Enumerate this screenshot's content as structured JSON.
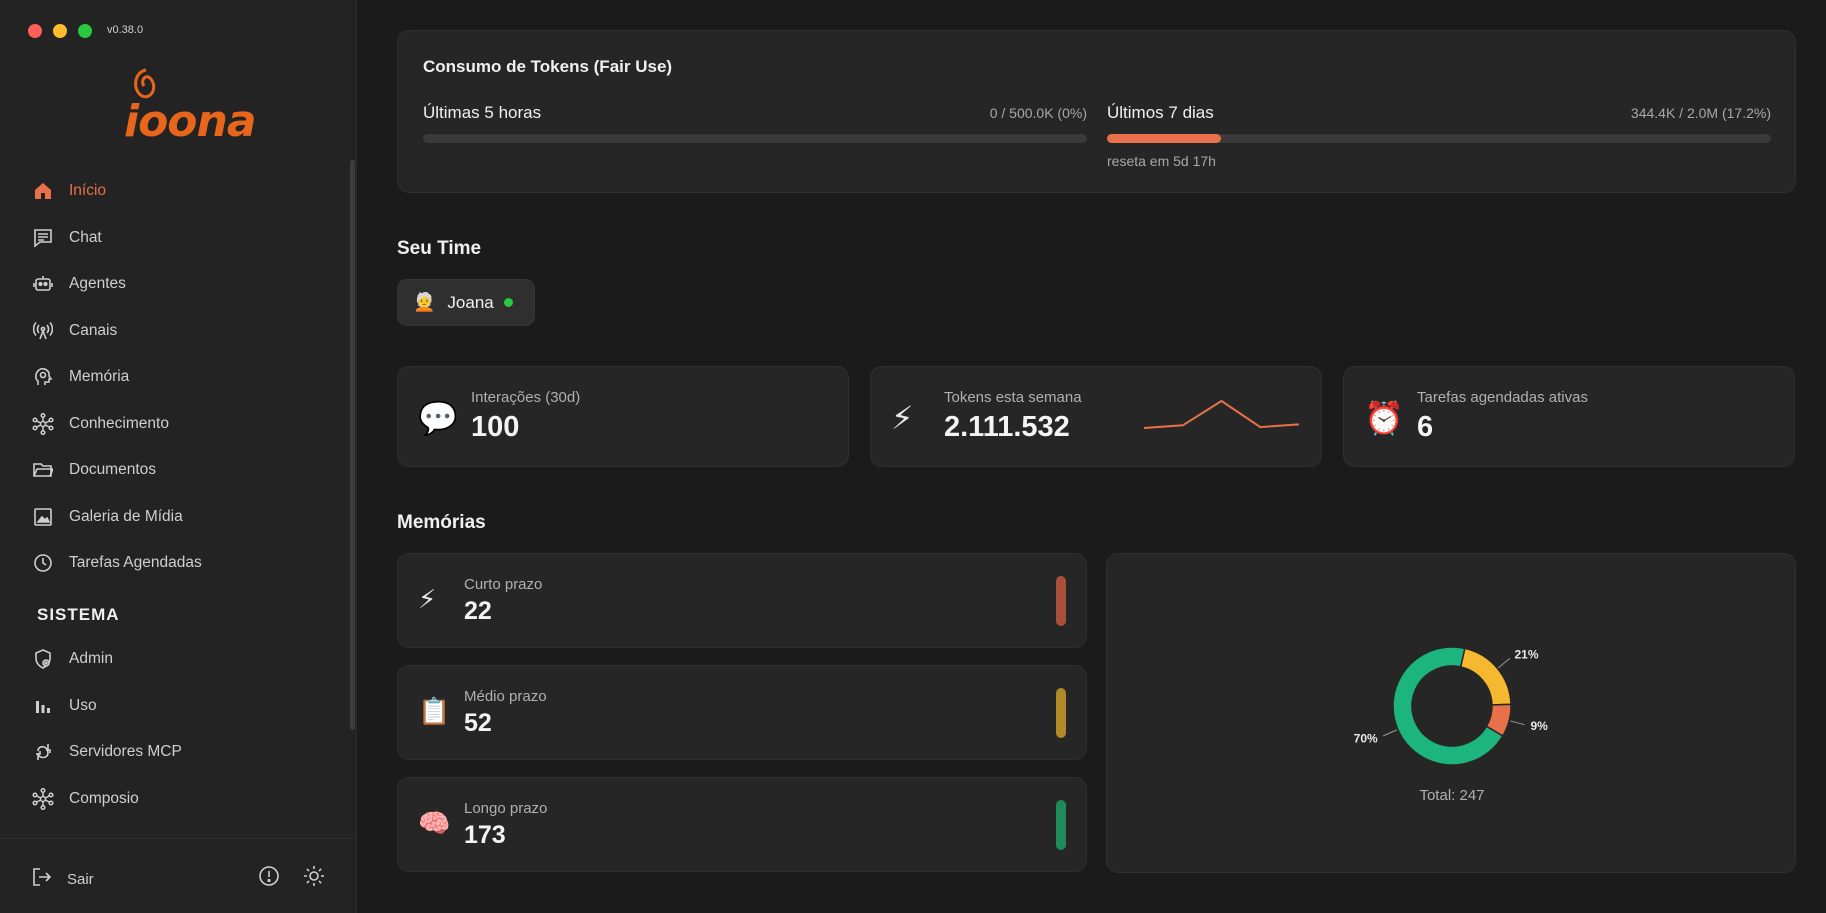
{
  "app": {
    "version": "v0.38.0",
    "logo_text": "ioona"
  },
  "colors": {
    "accent": "#e8704a",
    "brand": "#e8651c",
    "short": "#a8503a",
    "medium": "#b08a28",
    "long": "#1f8a5a"
  },
  "sidebar": {
    "items": [
      {
        "label": "Início",
        "icon": "home-icon",
        "active": true
      },
      {
        "label": "Chat",
        "icon": "chat-icon"
      },
      {
        "label": "Agentes",
        "icon": "robot-icon"
      },
      {
        "label": "Canais",
        "icon": "antenna-icon"
      },
      {
        "label": "Memória",
        "icon": "brain-head-icon"
      },
      {
        "label": "Conhecimento",
        "icon": "network-icon"
      },
      {
        "label": "Documentos",
        "icon": "folder-icon"
      },
      {
        "label": "Galeria de Mídia",
        "icon": "image-icon"
      },
      {
        "label": "Tarefas Agendadas",
        "icon": "clock-icon"
      }
    ],
    "section_label": "SISTEMA",
    "system_items": [
      {
        "label": "Admin",
        "icon": "shield-icon"
      },
      {
        "label": "Uso",
        "icon": "bar-chart-icon"
      },
      {
        "label": "Servidores MCP",
        "icon": "plug-icon"
      },
      {
        "label": "Composio",
        "icon": "network-icon"
      }
    ],
    "logout_label": "Sair"
  },
  "tokens": {
    "title": "Consumo de Tokens (Fair Use)",
    "short": {
      "label": "Últimas 5 horas",
      "value": "0 / 500.0K (0%)",
      "percent": 0
    },
    "week": {
      "label": "Últimos 7 dias",
      "value": "344.4K / 2.0M (17.2%)",
      "percent": 17.2,
      "reset": "reseta em 5d 17h"
    }
  },
  "team": {
    "title": "Seu Time",
    "members": [
      {
        "emoji": "🧑‍🦳",
        "name": "Joana",
        "online": true
      }
    ]
  },
  "stats": [
    {
      "emoji": "💬",
      "label": "Interações (30d)",
      "value": "100"
    },
    {
      "emoji": "⚡",
      "label": "Tokens esta semana",
      "value": "2.111.532",
      "trend": [
        20,
        26,
        80,
        22,
        28
      ]
    },
    {
      "emoji": "⏰",
      "label": "Tarefas agendadas ativas",
      "value": "6"
    }
  ],
  "memories": {
    "title": "Memórias",
    "items": [
      {
        "emoji": "⚡",
        "label": "Curto prazo",
        "value": "22"
      },
      {
        "emoji": "📋",
        "label": "Médio prazo",
        "value": "52"
      },
      {
        "emoji": "🧠",
        "label": "Longo prazo",
        "value": "173"
      }
    ]
  },
  "chart_data": {
    "type": "pie",
    "categories": [
      "Longo prazo",
      "Médio prazo",
      "Curto prazo"
    ],
    "values": [
      173,
      52,
      22
    ],
    "labels": [
      "70%",
      "21%",
      "9%"
    ],
    "colors": [
      "#1db57f",
      "#f5b82e",
      "#e8704a"
    ],
    "total_label": "Total: 247"
  }
}
